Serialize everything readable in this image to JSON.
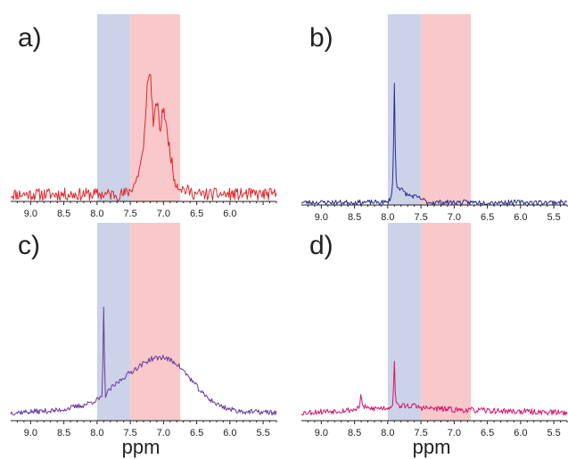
{
  "colors": {
    "blue_band": "#ccd3e8",
    "red_band": "#f8c8cb"
  },
  "chart_data": [
    {
      "type": "line",
      "panel_label": "a)",
      "xlabel": "",
      "x_reversed": true,
      "xlim": [
        9.3,
        5.3
      ],
      "tick_values": [
        9.0,
        8.5,
        8.0,
        7.5,
        7.0,
        6.5,
        6.0
      ],
      "tick_labels": [
        "9.0",
        "8.5",
        "8.0",
        "7.5",
        "7.0",
        "6.5",
        "6.0"
      ],
      "shaded_regions": [
        {
          "color": "blue",
          "range": [
            8.0,
            7.5
          ]
        },
        {
          "color": "red",
          "range": [
            7.5,
            6.75
          ]
        }
      ],
      "series": [
        {
          "color": "#e0262b",
          "noise": 0.05,
          "seed": 11,
          "x": [
            9.3,
            7.6,
            7.5,
            7.4,
            7.3,
            7.25,
            7.2,
            7.15,
            7.1,
            7.05,
            7.0,
            6.95,
            6.9,
            6.85,
            6.8,
            6.7,
            6.6,
            6.5,
            5.3
          ],
          "y": [
            0.0,
            0.0,
            0.03,
            0.12,
            0.35,
            0.85,
            1.0,
            0.55,
            0.75,
            0.5,
            0.72,
            0.5,
            0.35,
            0.15,
            0.08,
            0.04,
            0.02,
            0.0,
            0.0
          ]
        }
      ]
    },
    {
      "type": "line",
      "panel_label": "b)",
      "xlabel": "",
      "x_reversed": true,
      "xlim": [
        9.3,
        5.3
      ],
      "tick_values": [
        9.0,
        8.5,
        8.0,
        7.5,
        7.0,
        6.5,
        6.0,
        5.5
      ],
      "tick_labels": [
        "9.0",
        "8.5",
        "8.0",
        "7.5",
        "7.0",
        "6.5",
        "6.0",
        "5.5"
      ],
      "shaded_regions": [
        {
          "color": "blue",
          "range": [
            8.0,
            7.5
          ]
        },
        {
          "color": "red",
          "range": [
            7.5,
            6.75
          ]
        }
      ],
      "series": [
        {
          "color": "#2b2f8f",
          "noise": 0.02,
          "seed": 23,
          "x": [
            9.3,
            8.0,
            7.95,
            7.92,
            7.9,
            7.88,
            7.86,
            7.82,
            7.78,
            7.7,
            7.6,
            7.5,
            7.4,
            5.3
          ],
          "y": [
            0.0,
            0.0,
            0.04,
            0.2,
            1.0,
            0.22,
            0.14,
            0.12,
            0.1,
            0.06,
            0.05,
            0.03,
            0.0,
            0.0
          ]
        }
      ]
    },
    {
      "type": "line",
      "panel_label": "c)",
      "xlabel": "ppm",
      "x_reversed": true,
      "xlim": [
        9.3,
        5.3
      ],
      "tick_values": [
        9.0,
        8.5,
        8.0,
        7.5,
        7.0,
        6.5,
        6.0,
        5.5
      ],
      "tick_labels": [
        "9.0",
        "8.5",
        "8.0",
        "7.5",
        "7.0",
        "6.5",
        "6.0",
        "5.5"
      ],
      "shaded_regions": [
        {
          "color": "blue",
          "range": [
            8.0,
            7.5
          ]
        },
        {
          "color": "red",
          "range": [
            7.5,
            6.75
          ]
        }
      ],
      "series": [
        {
          "color": "#6a3a9c",
          "noise": 0.025,
          "seed": 37,
          "x": [
            9.3,
            8.6,
            8.2,
            8.0,
            7.92,
            7.9,
            7.88,
            7.8,
            7.6,
            7.4,
            7.2,
            7.0,
            6.8,
            6.6,
            6.4,
            6.2,
            6.0,
            5.8,
            5.3
          ],
          "y": [
            0.0,
            0.02,
            0.07,
            0.12,
            0.14,
            1.0,
            0.16,
            0.22,
            0.33,
            0.42,
            0.5,
            0.52,
            0.46,
            0.32,
            0.17,
            0.08,
            0.03,
            0.01,
            0.0
          ]
        }
      ]
    },
    {
      "type": "line",
      "panel_label": "d)",
      "xlabel": "ppm",
      "x_reversed": true,
      "xlim": [
        9.3,
        5.3
      ],
      "tick_values": [
        9.0,
        8.5,
        8.0,
        7.5,
        7.0,
        6.5,
        6.0,
        5.5
      ],
      "tick_labels": [
        "9.0",
        "8.5",
        "8.0",
        "7.5",
        "7.0",
        "6.5",
        "6.0",
        "5.5"
      ],
      "shaded_regions": [
        {
          "color": "blue",
          "range": [
            8.0,
            7.5
          ]
        },
        {
          "color": "red",
          "range": [
            7.5,
            6.75
          ]
        }
      ],
      "series": [
        {
          "color": "#d4156a",
          "noise": 0.03,
          "seed": 53,
          "x": [
            9.3,
            8.5,
            8.42,
            8.4,
            8.38,
            8.3,
            8.0,
            7.92,
            7.9,
            7.88,
            7.8,
            7.6,
            7.5,
            7.0,
            6.5,
            5.3
          ],
          "y": [
            0.0,
            0.03,
            0.07,
            0.2,
            0.07,
            0.04,
            0.05,
            0.08,
            0.55,
            0.08,
            0.07,
            0.07,
            0.05,
            0.03,
            0.02,
            0.0
          ]
        }
      ]
    }
  ]
}
